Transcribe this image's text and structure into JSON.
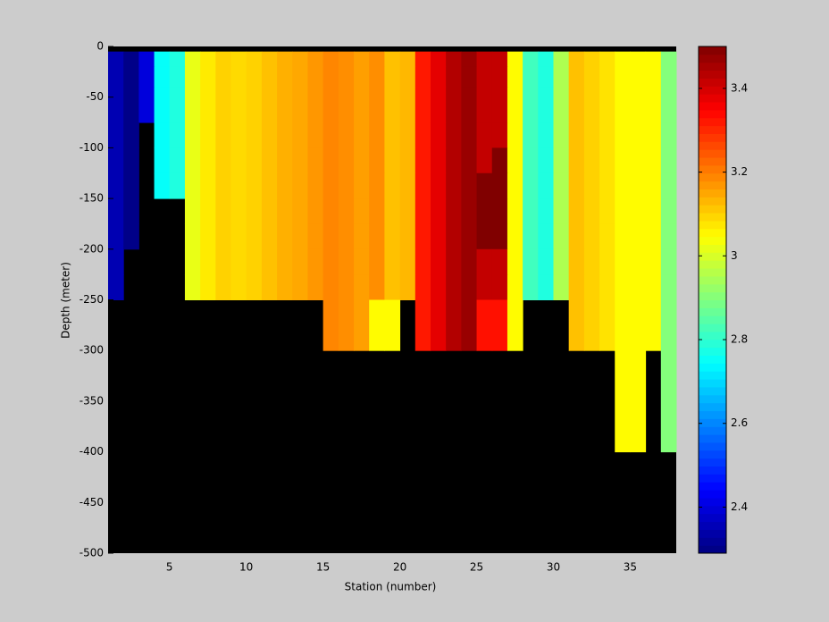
{
  "chart_data": {
    "type": "heatmap",
    "xlabel": "Station (number)",
    "ylabel": "Depth (meter)",
    "colormap": "jet",
    "missing_color": "#000000",
    "xlim": [
      1,
      38
    ],
    "ylim": [
      -500,
      0
    ],
    "xticks": [
      5,
      10,
      15,
      20,
      25,
      30,
      35
    ],
    "yticks": [
      -500,
      -450,
      -400,
      -350,
      -300,
      -250,
      -200,
      -150,
      -100,
      -50,
      0
    ],
    "x_edges": [
      1,
      2,
      3,
      4,
      5,
      6,
      7,
      8,
      9,
      10,
      11,
      12,
      13,
      14,
      15,
      16,
      17,
      18,
      19,
      20,
      21,
      22,
      23,
      24,
      25,
      26,
      27,
      28,
      29,
      30,
      31,
      32,
      33,
      34,
      35,
      36,
      37,
      38
    ],
    "y_edges": [
      0,
      -5,
      -20,
      -40,
      -75,
      -100,
      -125,
      -150,
      -175,
      -200,
      -225,
      -250,
      -300,
      -400,
      -500
    ],
    "values": [
      [
        null,
        null,
        null,
        null,
        null,
        null,
        null,
        null,
        null,
        null,
        null,
        null,
        null,
        null,
        null,
        null,
        null,
        null,
        null,
        null,
        null,
        null,
        null,
        null,
        null,
        null,
        null,
        null,
        null,
        null,
        null,
        null,
        null,
        null,
        null,
        null,
        null
      ],
      [
        2.35,
        2.3,
        2.4,
        2.75,
        2.78,
        3.02,
        3.07,
        3.1,
        3.09,
        3.1,
        3.12,
        3.14,
        3.15,
        3.17,
        3.19,
        3.18,
        3.16,
        3.18,
        3.12,
        3.13,
        3.32,
        3.38,
        3.44,
        3.47,
        3.42,
        3.42,
        3.05,
        2.82,
        2.78,
        2.95,
        3.12,
        3.1,
        3.08,
        3.05,
        3.05,
        3.05,
        2.9
      ],
      [
        2.35,
        2.3,
        2.4,
        2.75,
        2.78,
        3.02,
        3.07,
        3.1,
        3.09,
        3.1,
        3.12,
        3.14,
        3.15,
        3.17,
        3.19,
        3.18,
        3.16,
        3.18,
        3.12,
        3.13,
        3.32,
        3.38,
        3.44,
        3.47,
        3.42,
        3.42,
        3.05,
        2.82,
        2.78,
        2.95,
        3.12,
        3.1,
        3.08,
        3.05,
        3.05,
        3.05,
        2.9
      ],
      [
        2.35,
        2.3,
        2.4,
        2.75,
        2.78,
        3.02,
        3.07,
        3.1,
        3.09,
        3.1,
        3.12,
        3.14,
        3.15,
        3.17,
        3.19,
        3.18,
        3.16,
        3.18,
        3.12,
        3.13,
        3.32,
        3.38,
        3.44,
        3.47,
        3.42,
        3.42,
        3.05,
        2.82,
        2.78,
        2.95,
        3.12,
        3.1,
        3.08,
        3.05,
        3.05,
        3.05,
        2.9
      ],
      [
        2.35,
        2.3,
        null,
        2.75,
        2.78,
        3.02,
        3.07,
        3.1,
        3.09,
        3.1,
        3.12,
        3.14,
        3.15,
        3.17,
        3.19,
        3.18,
        3.16,
        3.18,
        3.12,
        3.13,
        3.32,
        3.38,
        3.44,
        3.47,
        3.42,
        3.42,
        3.05,
        2.82,
        2.78,
        2.95,
        3.12,
        3.1,
        3.08,
        3.05,
        3.05,
        3.05,
        2.9
      ],
      [
        2.35,
        2.3,
        null,
        2.75,
        2.78,
        3.02,
        3.07,
        3.1,
        3.09,
        3.1,
        3.12,
        3.14,
        3.15,
        3.17,
        3.19,
        3.18,
        3.16,
        3.18,
        3.12,
        3.13,
        3.32,
        3.38,
        3.44,
        3.47,
        3.42,
        3.5,
        3.05,
        2.82,
        2.78,
        2.95,
        3.12,
        3.1,
        3.08,
        3.05,
        3.05,
        3.05,
        2.9
      ],
      [
        2.35,
        2.3,
        null,
        2.75,
        2.78,
        3.02,
        3.07,
        3.1,
        3.09,
        3.1,
        3.12,
        3.14,
        3.15,
        3.17,
        3.19,
        3.18,
        3.16,
        3.18,
        3.12,
        3.13,
        3.32,
        3.38,
        3.44,
        3.47,
        3.5,
        3.5,
        3.05,
        2.82,
        2.78,
        2.95,
        3.12,
        3.1,
        3.08,
        3.05,
        3.05,
        3.05,
        2.9
      ],
      [
        2.35,
        2.3,
        null,
        null,
        null,
        3.02,
        3.07,
        3.1,
        3.09,
        3.1,
        3.12,
        3.14,
        3.15,
        3.17,
        3.19,
        3.18,
        3.16,
        3.18,
        3.12,
        3.13,
        3.32,
        3.38,
        3.44,
        3.47,
        3.5,
        3.5,
        3.05,
        2.82,
        2.78,
        2.95,
        3.12,
        3.1,
        3.08,
        3.05,
        3.05,
        3.05,
        2.9
      ],
      [
        2.35,
        2.3,
        null,
        null,
        null,
        3.02,
        3.07,
        3.1,
        3.09,
        3.1,
        3.12,
        3.14,
        3.15,
        3.17,
        3.19,
        3.18,
        3.16,
        3.18,
        3.12,
        3.13,
        3.32,
        3.38,
        3.44,
        3.47,
        3.5,
        3.5,
        3.05,
        2.82,
        2.78,
        2.95,
        3.12,
        3.1,
        3.08,
        3.05,
        3.05,
        3.05,
        2.9
      ],
      [
        2.35,
        null,
        null,
        null,
        null,
        3.02,
        3.07,
        3.1,
        3.09,
        3.1,
        3.12,
        3.14,
        3.15,
        3.17,
        3.19,
        3.18,
        3.16,
        3.18,
        3.12,
        3.13,
        3.32,
        3.38,
        3.44,
        3.47,
        3.42,
        3.42,
        3.05,
        2.82,
        2.78,
        2.95,
        3.12,
        3.1,
        3.08,
        3.05,
        3.05,
        3.05,
        2.9
      ],
      [
        2.35,
        null,
        null,
        null,
        null,
        3.02,
        3.07,
        3.1,
        3.09,
        3.1,
        3.12,
        3.14,
        3.15,
        3.17,
        3.19,
        3.18,
        3.16,
        3.18,
        3.12,
        3.13,
        3.32,
        3.38,
        3.44,
        3.47,
        3.42,
        3.42,
        3.05,
        2.82,
        2.78,
        2.95,
        3.12,
        3.1,
        3.08,
        3.05,
        3.05,
        3.05,
        2.9
      ],
      [
        null,
        null,
        null,
        null,
        null,
        null,
        null,
        null,
        null,
        null,
        null,
        null,
        null,
        null,
        3.19,
        3.18,
        3.16,
        3.05,
        3.05,
        null,
        3.32,
        3.38,
        3.44,
        3.47,
        3.33,
        3.33,
        3.05,
        null,
        null,
        null,
        3.12,
        3.1,
        3.08,
        3.05,
        3.05,
        3.05,
        2.9
      ],
      [
        null,
        null,
        null,
        null,
        null,
        null,
        null,
        null,
        null,
        null,
        null,
        null,
        null,
        null,
        null,
        null,
        null,
        null,
        null,
        null,
        null,
        null,
        null,
        null,
        null,
        null,
        null,
        null,
        null,
        null,
        null,
        null,
        null,
        3.05,
        3.05,
        null,
        2.9
      ],
      [
        null,
        null,
        null,
        null,
        null,
        null,
        null,
        null,
        null,
        null,
        null,
        null,
        null,
        null,
        null,
        null,
        null,
        null,
        null,
        null,
        null,
        null,
        null,
        null,
        null,
        null,
        null,
        null,
        null,
        null,
        null,
        null,
        null,
        null,
        null,
        null,
        null
      ]
    ],
    "colorbar": {
      "clim": [
        2.29,
        3.5
      ],
      "ticks": [
        2.4,
        2.6,
        2.8,
        3,
        3.2,
        3.4
      ]
    }
  }
}
